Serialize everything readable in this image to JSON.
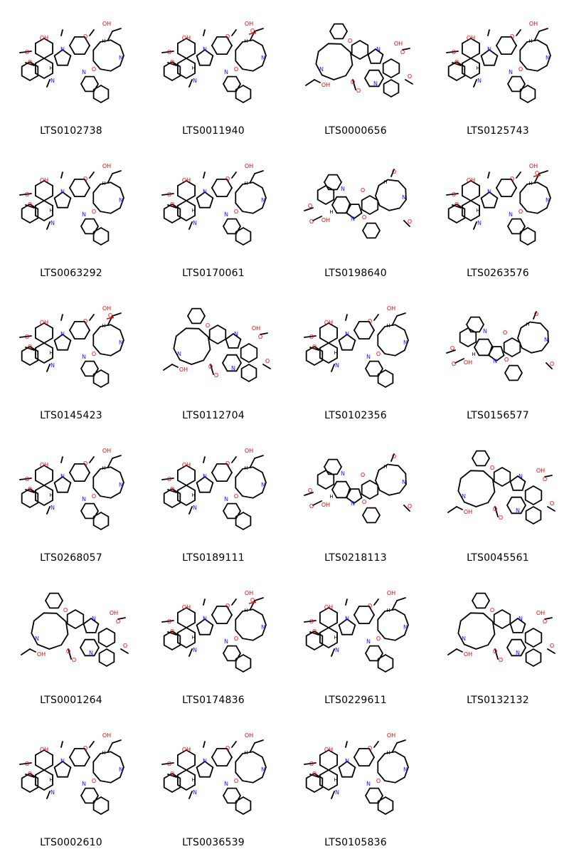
{
  "molecules": [
    {
      "id": "LTS0102738",
      "variant": 0
    },
    {
      "id": "LTS0011940",
      "variant": 1
    },
    {
      "id": "LTS0000656",
      "variant": 2
    },
    {
      "id": "LTS0125743",
      "variant": 0
    },
    {
      "id": "LTS0063292",
      "variant": 0
    },
    {
      "id": "LTS0170061",
      "variant": 0
    },
    {
      "id": "LTS0198640",
      "variant": 3
    },
    {
      "id": "LTS0263576",
      "variant": 1
    },
    {
      "id": "LTS0145423",
      "variant": 1
    },
    {
      "id": "LTS0112704",
      "variant": 2
    },
    {
      "id": "LTS0102356",
      "variant": 0
    },
    {
      "id": "LTS0156577",
      "variant": 3
    },
    {
      "id": "LTS0268057",
      "variant": 0
    },
    {
      "id": "LTS0189111",
      "variant": 0
    },
    {
      "id": "LTS0218113",
      "variant": 3
    },
    {
      "id": "LTS0045561",
      "variant": 2
    },
    {
      "id": "LTS0001264",
      "variant": 2
    },
    {
      "id": "LTS0174836",
      "variant": 1
    },
    {
      "id": "LTS0229611",
      "variant": 0
    },
    {
      "id": "LTS0132132",
      "variant": 2
    },
    {
      "id": "LTS0002610",
      "variant": 0
    },
    {
      "id": "LTS0036539",
      "variant": 0
    },
    {
      "id": "LTS0105836",
      "variant": 0
    }
  ],
  "colors": {
    "bond": "#000000",
    "oxygen": "#e60000",
    "nitrogen": "#1a1aff",
    "label": "#000000",
    "background": "#ffffff"
  }
}
